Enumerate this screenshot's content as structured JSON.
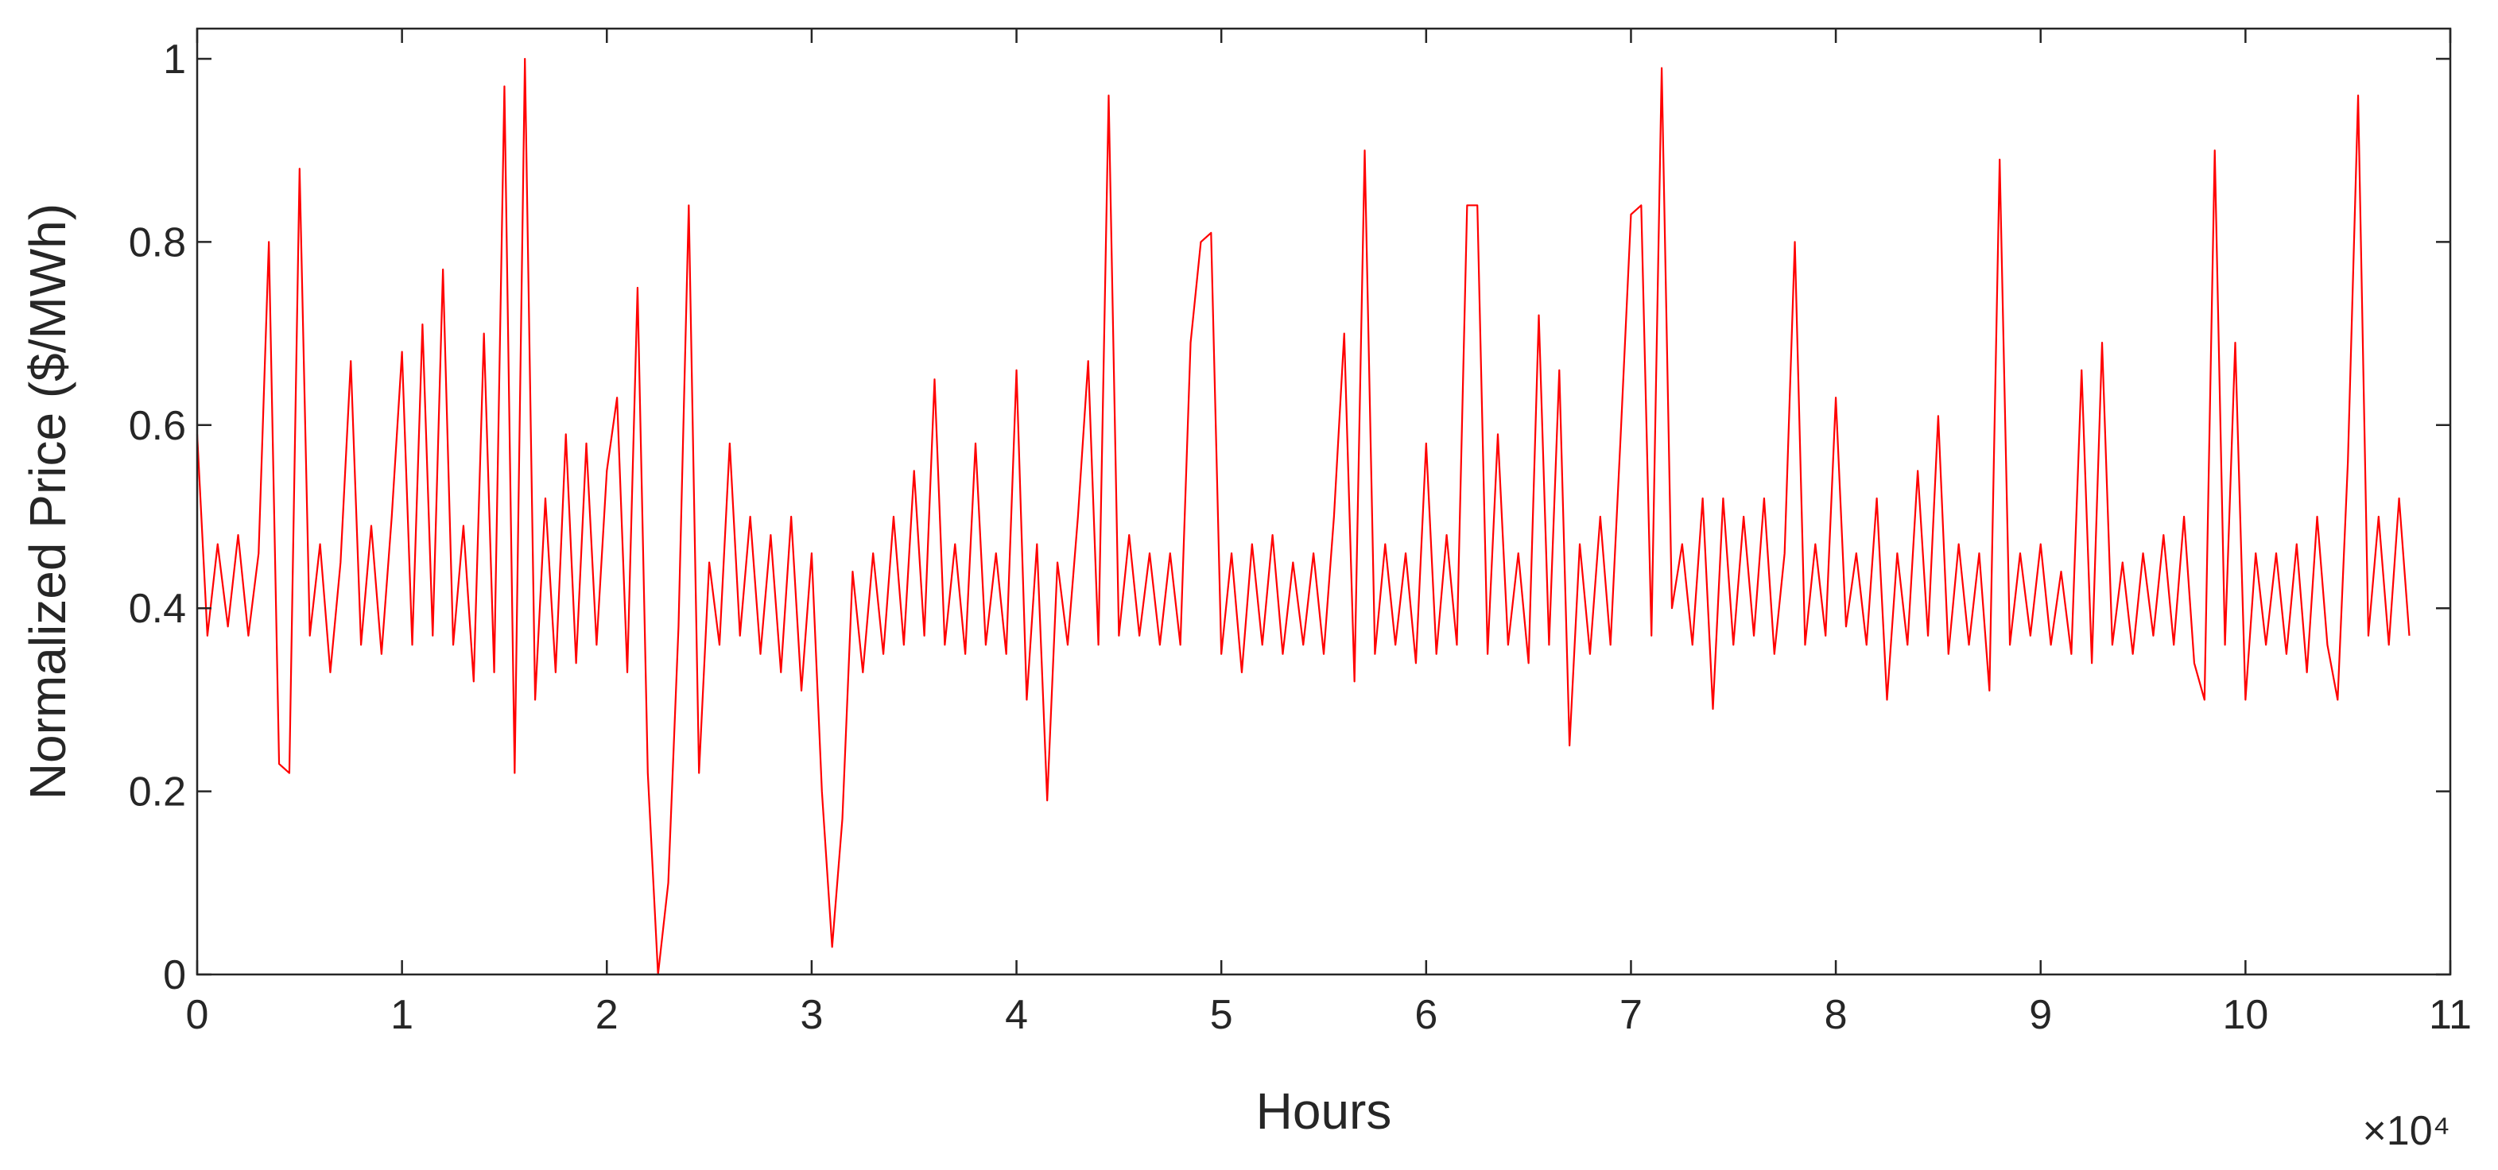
{
  "chart_data": {
    "type": "line",
    "xlabel": "Hours",
    "ylabel": "Normalized Price ($/MWh)",
    "x_exponent": "×10⁴",
    "color": "#ff0000",
    "xlim": [
      0,
      110000
    ],
    "ylim": [
      0,
      1.033
    ],
    "xticks": [
      0,
      {
        "value": 10000,
        "label": "1"
      },
      {
        "value": 20000,
        "label": "2"
      },
      {
        "value": 30000,
        "label": "3"
      },
      {
        "value": 40000,
        "label": "4"
      },
      {
        "value": 50000,
        "label": "5"
      },
      {
        "value": 60000,
        "label": "6"
      },
      {
        "value": 70000,
        "label": "7"
      },
      {
        "value": 80000,
        "label": "8"
      },
      {
        "value": 90000,
        "label": "9"
      },
      {
        "value": 100000,
        "label": "10"
      },
      {
        "value": 110000,
        "label": "11"
      }
    ],
    "yticks": [
      0,
      0.2,
      0.4,
      0.6,
      0.8,
      1
    ],
    "x": [
      0,
      500,
      1000,
      1500,
      2000,
      2500,
      3000,
      3500,
      4000,
      4500,
      5000,
      5500,
      6000,
      6500,
      7000,
      7500,
      8000,
      8500,
      9000,
      9500,
      10000,
      10500,
      11000,
      11500,
      12000,
      12500,
      13000,
      13500,
      14000,
      14500,
      15000,
      15500,
      16000,
      16500,
      17000,
      17500,
      18000,
      18500,
      19000,
      19500,
      20000,
      20500,
      21000,
      21500,
      22000,
      22500,
      23000,
      23500,
      24000,
      24500,
      25000,
      25500,
      26000,
      26500,
      27000,
      27500,
      28000,
      28500,
      29000,
      29500,
      30000,
      30500,
      31000,
      31500,
      32000,
      32500,
      33000,
      33500,
      34000,
      34500,
      35000,
      35500,
      36000,
      36500,
      37000,
      37500,
      38000,
      38500,
      39000,
      39500,
      40000,
      40500,
      41000,
      41500,
      42000,
      42500,
      43000,
      43500,
      44000,
      44500,
      45000,
      45500,
      46000,
      46500,
      47000,
      47500,
      48000,
      48500,
      49000,
      49500,
      50000,
      50500,
      51000,
      51500,
      52000,
      52500,
      53000,
      53500,
      54000,
      54500,
      55000,
      55500,
      56000,
      56500,
      57000,
      57500,
      58000,
      58500,
      59000,
      59500,
      60000,
      60500,
      61000,
      61500,
      62000,
      62500,
      63000,
      63500,
      64000,
      64500,
      65000,
      65500,
      66000,
      66500,
      67000,
      67500,
      68000,
      68500,
      69000,
      69500,
      70000,
      70500,
      71000,
      71500,
      72000,
      72500,
      73000,
      73500,
      74000,
      74500,
      75000,
      75500,
      76000,
      76500,
      77000,
      77500,
      78000,
      78500,
      79000,
      79500,
      80000,
      80500,
      81000,
      81500,
      82000,
      82500,
      83000,
      83500,
      84000,
      84500,
      85000,
      85500,
      86000,
      86500,
      87000,
      87500,
      88000,
      88500,
      89000,
      89500,
      90000,
      90500,
      91000,
      91500,
      92000,
      92500,
      93000,
      93500,
      94000,
      94500,
      95000,
      95500,
      96000,
      96500,
      97000,
      97500,
      98000,
      98500,
      99000,
      99500,
      100000,
      100500,
      101000,
      101500,
      102000,
      102500,
      103000,
      103500,
      104000,
      104500,
      105000,
      105500,
      106000,
      106500,
      107000,
      107500,
      108000
    ],
    "values": [
      0.59,
      0.37,
      0.47,
      0.38,
      0.48,
      0.37,
      0.46,
      0.8,
      0.23,
      0.22,
      0.88,
      0.37,
      0.47,
      0.33,
      0.45,
      0.67,
      0.36,
      0.49,
      0.35,
      0.5,
      0.68,
      0.36,
      0.71,
      0.37,
      0.77,
      0.36,
      0.49,
      0.32,
      0.7,
      0.33,
      0.97,
      0.22,
      1.0,
      0.3,
      0.52,
      0.33,
      0.59,
      0.34,
      0.58,
      0.36,
      0.55,
      0.63,
      0.33,
      0.75,
      0.22,
      0.0,
      0.1,
      0.38,
      0.84,
      0.22,
      0.45,
      0.36,
      0.58,
      0.37,
      0.5,
      0.35,
      0.48,
      0.33,
      0.5,
      0.31,
      0.46,
      0.2,
      0.03,
      0.17,
      0.44,
      0.33,
      0.46,
      0.35,
      0.5,
      0.36,
      0.55,
      0.37,
      0.65,
      0.36,
      0.47,
      0.35,
      0.58,
      0.36,
      0.46,
      0.35,
      0.66,
      0.3,
      0.47,
      0.19,
      0.45,
      0.36,
      0.5,
      0.67,
      0.36,
      0.96,
      0.37,
      0.48,
      0.37,
      0.46,
      0.36,
      0.46,
      0.36,
      0.69,
      0.8,
      0.81,
      0.35,
      0.46,
      0.33,
      0.47,
      0.36,
      0.48,
      0.35,
      0.45,
      0.36,
      0.46,
      0.35,
      0.5,
      0.7,
      0.32,
      0.9,
      0.35,
      0.47,
      0.36,
      0.46,
      0.34,
      0.58,
      0.35,
      0.48,
      0.36,
      0.84,
      0.84,
      0.35,
      0.59,
      0.36,
      0.46,
      0.34,
      0.72,
      0.36,
      0.66,
      0.25,
      0.47,
      0.35,
      0.5,
      0.36,
      0.59,
      0.83,
      0.84,
      0.37,
      0.99,
      0.4,
      0.47,
      0.36,
      0.52,
      0.29,
      0.52,
      0.36,
      0.5,
      0.37,
      0.52,
      0.35,
      0.46,
      0.8,
      0.36,
      0.47,
      0.37,
      0.63,
      0.38,
      0.46,
      0.36,
      0.52,
      0.3,
      0.46,
      0.36,
      0.55,
      0.37,
      0.61,
      0.35,
      0.47,
      0.36,
      0.46,
      0.31,
      0.89,
      0.36,
      0.46,
      0.37,
      0.47,
      0.36,
      0.44,
      0.35,
      0.66,
      0.34,
      0.69,
      0.36,
      0.45,
      0.35,
      0.46,
      0.37,
      0.48,
      0.36,
      0.5,
      0.34,
      0.3,
      0.9,
      0.36,
      0.69,
      0.3,
      0.46,
      0.36,
      0.46,
      0.35,
      0.47,
      0.33,
      0.5,
      0.36,
      0.3,
      0.56,
      0.96,
      0.37,
      0.5,
      0.36,
      0.52,
      0.37
    ]
  }
}
